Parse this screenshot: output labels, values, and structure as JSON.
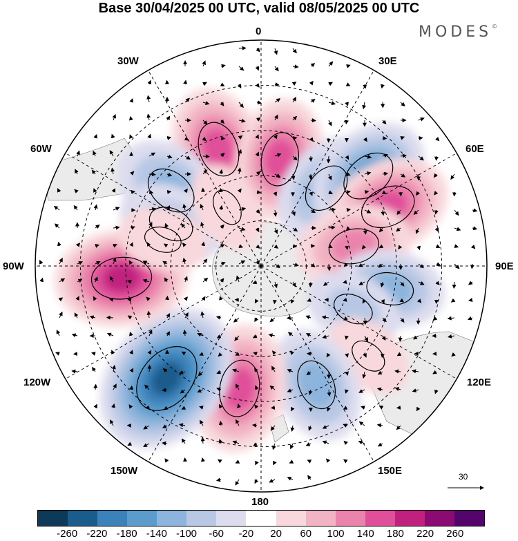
{
  "header": {
    "title": "Base 30/04/2025 00 UTC, valid 08/05/2025 00 UTC",
    "brand": "MODES"
  },
  "map": {
    "projection": "south polar stereographic",
    "longitude_labels": {
      "top": "0",
      "top_right": "30E",
      "right_upper": "60E",
      "right": "90E",
      "right_lower": "120E",
      "bottom_right": "150E",
      "bottom": "180",
      "bottom_left": "150W",
      "left_lower": "120W",
      "left": "90W",
      "left_upper": "60W",
      "top_left": "30W"
    },
    "vector_scale_label": "30",
    "land_color": "#ebebeb"
  },
  "colorbar": {
    "colors": [
      "#0c3a58",
      "#1a5c8c",
      "#3b82ba",
      "#5c9ccc",
      "#8cb4dc",
      "#b8c8e4",
      "#dcdcee",
      "#ffffff",
      "#f8d8dc",
      "#f2b4c4",
      "#ea84ac",
      "#e0509a",
      "#c0207e",
      "#8a0c72",
      "#54056c"
    ],
    "tick_labels": [
      "-260",
      "-220",
      "-180",
      "-140",
      "-100",
      "-60",
      "-20",
      "20",
      "60",
      "100",
      "140",
      "180",
      "220",
      "260"
    ]
  },
  "anomalies": [
    {
      "lon": -20,
      "r": 0.55,
      "value": 150
    },
    {
      "lon": -50,
      "r": 0.52,
      "value": -130
    },
    {
      "lon": -65,
      "r": 0.44,
      "value": -90
    },
    {
      "lon": 10,
      "r": 0.48,
      "value": 140
    },
    {
      "lon": 40,
      "r": 0.45,
      "value": -120
    },
    {
      "lon": 50,
      "r": 0.62,
      "value": -150
    },
    {
      "lon": 65,
      "r": 0.62,
      "value": 150
    },
    {
      "lon": 78,
      "r": 0.42,
      "value": 120
    },
    {
      "lon": 100,
      "r": 0.58,
      "value": -100
    },
    {
      "lon": 115,
      "r": 0.45,
      "value": -60
    },
    {
      "lon": 130,
      "r": 0.62,
      "value": 40
    },
    {
      "lon": 155,
      "r": 0.58,
      "value": -120
    },
    {
      "lon": -170,
      "r": 0.55,
      "value": 160
    },
    {
      "lon": -140,
      "r": 0.65,
      "value": -250
    },
    {
      "lon": -95,
      "r": 0.62,
      "value": 180
    },
    {
      "lon": -75,
      "r": 0.45,
      "value": 40
    },
    {
      "lon": -30,
      "r": 0.3,
      "value": 40
    }
  ]
}
